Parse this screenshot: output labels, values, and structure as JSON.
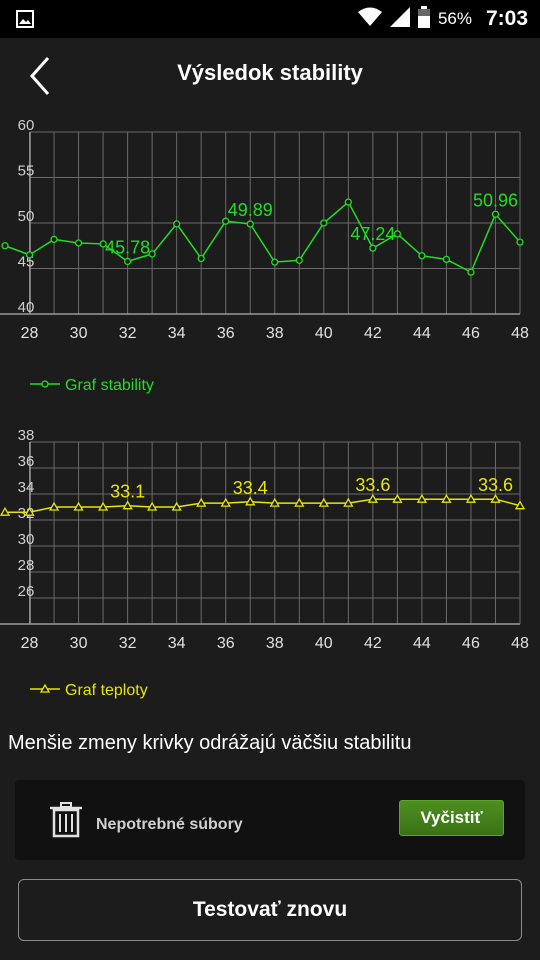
{
  "status_bar": {
    "battery_percent": "56%",
    "time": "7:03"
  },
  "header": {
    "title": "Výsledok stability"
  },
  "colors": {
    "stability": "#22dd22",
    "temperature": "#e6e600",
    "grid": "#6a6a6a",
    "accent_button": "#4a8a1e"
  },
  "chart_data": [
    {
      "type": "line",
      "legend": "Graf stability",
      "ylim": [
        40,
        60
      ],
      "yticks": [
        40,
        45,
        50,
        55,
        60
      ],
      "xticks": [
        28,
        30,
        32,
        34,
        36,
        38,
        40,
        42,
        44,
        46,
        48
      ],
      "x": [
        27,
        28,
        29,
        30,
        31,
        32,
        33,
        34,
        35,
        36,
        37,
        38,
        39,
        40,
        41,
        42,
        43,
        44,
        45,
        46,
        47,
        48
      ],
      "values": [
        47.5,
        46.5,
        48.2,
        47.8,
        47.7,
        45.78,
        46.6,
        49.9,
        46.1,
        50.2,
        49.89,
        45.7,
        45.9,
        50.0,
        52.3,
        47.24,
        48.8,
        46.4,
        46.0,
        44.6,
        50.96,
        47.9
      ],
      "annotations": [
        {
          "x": 32,
          "label": "45.78"
        },
        {
          "x": 37,
          "label": "49.89"
        },
        {
          "x": 42,
          "label": "47.24"
        },
        {
          "x": 47,
          "label": "50.96"
        }
      ]
    },
    {
      "type": "line",
      "legend": "Graf teploty",
      "ylim": [
        24,
        38
      ],
      "yticks": [
        26,
        28,
        30,
        32,
        34,
        36,
        38
      ],
      "xticks": [
        28,
        30,
        32,
        34,
        36,
        38,
        40,
        42,
        44,
        46,
        48
      ],
      "x": [
        27,
        28,
        29,
        30,
        31,
        32,
        33,
        34,
        35,
        36,
        37,
        38,
        39,
        40,
        41,
        42,
        43,
        44,
        45,
        46,
        47,
        48
      ],
      "values": [
        32.6,
        32.6,
        33.0,
        33.0,
        33.0,
        33.1,
        33.0,
        33.0,
        33.3,
        33.3,
        33.4,
        33.3,
        33.3,
        33.3,
        33.3,
        33.6,
        33.6,
        33.6,
        33.6,
        33.6,
        33.6,
        33.1
      ],
      "annotations": [
        {
          "x": 32,
          "label": "33.1"
        },
        {
          "x": 37,
          "label": "33.4"
        },
        {
          "x": 42,
          "label": "33.6"
        },
        {
          "x": 47,
          "label": "33.6"
        }
      ]
    }
  ],
  "hint_text": "Menšie zmeny krivky odrážajú väčšiu stabilitu",
  "junk_card": {
    "label": "Nepotrebné súbory",
    "button_label": "Vyčistiť"
  },
  "retest_button": "Testovať znovu"
}
